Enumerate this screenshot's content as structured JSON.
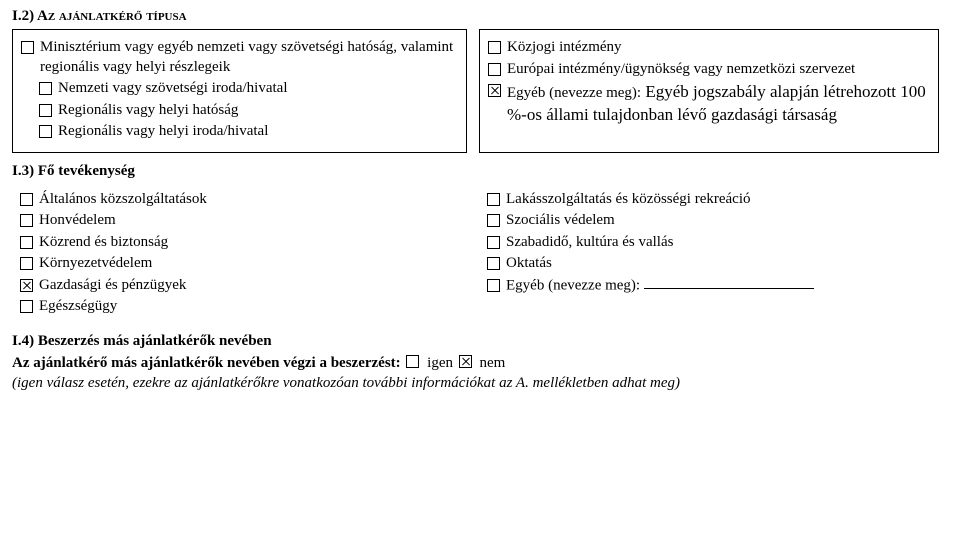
{
  "section_i2": {
    "heading": "I.2) Az ajánlatkérő típusa",
    "left": [
      {
        "text": "Minisztérium vagy egyéb nemzeti vagy szövetségi hatóság, valamint regionális vagy helyi részlegeik",
        "checked": false,
        "indent": false
      },
      {
        "text": "Nemzeti vagy szövetségi iroda/hivatal",
        "checked": false,
        "indent": true
      },
      {
        "text": "Regionális vagy helyi hatóság",
        "checked": false,
        "indent": true
      },
      {
        "text": "Regionális vagy helyi iroda/hivatal",
        "checked": false,
        "indent": true
      }
    ],
    "right": [
      {
        "text": "Közjogi intézmény",
        "checked": false,
        "indent": false
      },
      {
        "text": "Európai intézmény/ügynökség vagy nemzetközi szervezet",
        "checked": false,
        "indent": false
      },
      {
        "prefix": "Egyéb (nevezze meg):",
        "text": " Egyéb jogszabály alapján létrehozott 100 %-os állami tulajdonban lévő gazdasági társaság",
        "checked": true,
        "indent": false
      }
    ]
  },
  "section_i3": {
    "heading": "I.3) Fő tevékenység",
    "left": [
      {
        "text": "Általános közszolgáltatások",
        "checked": false
      },
      {
        "text": "Honvédelem",
        "checked": false
      },
      {
        "text": "Közrend és biztonság",
        "checked": false
      },
      {
        "text": "Környezetvédelem",
        "checked": false
      },
      {
        "text": "Gazdasági és pénzügyek",
        "checked": true
      },
      {
        "text": "Egészségügy",
        "checked": false
      }
    ],
    "right": [
      {
        "text": "Lakásszolgáltatás és közösségi rekreáció",
        "checked": false
      },
      {
        "text": "Szociális védelem",
        "checked": false
      },
      {
        "text": "Szabadidő, kultúra és vallás",
        "checked": false
      },
      {
        "text": "Oktatás",
        "checked": false
      },
      {
        "text": "Egyéb (nevezze meg):",
        "checked": false,
        "blank": true
      }
    ]
  },
  "section_i4": {
    "heading": "I.4) Beszerzés más ajánlatkérők nevében",
    "line_bold": "Az ajánlatkérő más ajánlatkérők nevében végzi a beszerzést:",
    "yes_label": "igen",
    "no_label": "nem",
    "yes_checked": false,
    "no_checked": true,
    "note": "(igen válasz esetén, ezekre az ajánlatkérőkre vonatkozóan további információkat az A. mellékletben adhat meg)"
  }
}
